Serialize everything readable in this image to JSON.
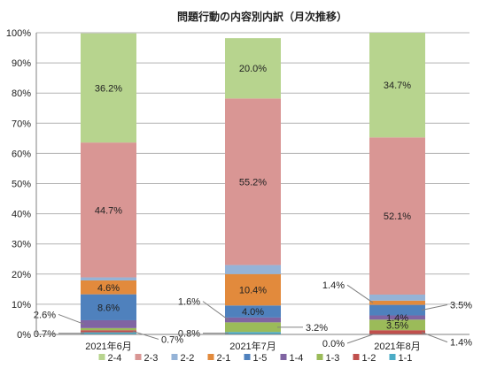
{
  "chart_data": {
    "type": "bar",
    "stacked": "percent",
    "title": "問題行動の内容別内訳（月次推移）",
    "categories": [
      "2021年6月",
      "2021年7月",
      "2021年8月"
    ],
    "yticks": [
      "0%",
      "10%",
      "20%",
      "30%",
      "40%",
      "50%",
      "60%",
      "70%",
      "80%",
      "90%",
      "100%"
    ],
    "ylim": [
      0,
      100
    ],
    "grid": true,
    "legend_position": "bottom",
    "series": [
      {
        "name": "1-1",
        "color": "#4bacc6",
        "values": [
          0.7,
          0.8,
          0.0
        ],
        "labels": [
          "0.7%",
          "0.8%",
          "0.0%"
        ]
      },
      {
        "name": "1-2",
        "color": "#c0504d",
        "values": [
          0.7,
          0.0,
          1.4
        ],
        "labels": [
          "0.7%",
          "",
          "1.4%"
        ]
      },
      {
        "name": "1-3",
        "color": "#9bbb59",
        "values": [
          0.7,
          3.2,
          3.5
        ],
        "labels": [
          "",
          "3.2%",
          "3.5%"
        ]
      },
      {
        "name": "1-4",
        "color": "#8064a2",
        "values": [
          2.6,
          1.6,
          1.4
        ],
        "labels": [
          "2.6%",
          "1.6%",
          "1.4%"
        ]
      },
      {
        "name": "1-5",
        "color": "#4f81bd",
        "values": [
          8.6,
          4.0,
          3.5
        ],
        "labels": [
          "8.6%",
          "4.0%",
          "3.5%"
        ]
      },
      {
        "name": "2-1",
        "color": "#e28a3c",
        "values": [
          4.6,
          10.4,
          1.4
        ],
        "labels": [
          "4.6%",
          "10.4%",
          "1.4%"
        ]
      },
      {
        "name": "2-2",
        "color": "#95b3d7",
        "values": [
          1.0,
          3.0,
          2.0
        ],
        "labels": [
          "",
          "",
          ""
        ]
      },
      {
        "name": "2-3",
        "color": "#d99694",
        "values": [
          44.7,
          55.2,
          52.1
        ],
        "labels": [
          "44.7%",
          "55.2%",
          "52.1%"
        ]
      },
      {
        "name": "2-4",
        "color": "#b7d48e",
        "values": [
          36.2,
          20.0,
          34.7
        ],
        "labels": [
          "36.2%",
          "20.0%",
          "34.7%"
        ]
      }
    ],
    "legend_order": [
      "2-4",
      "2-3",
      "2-2",
      "2-1",
      "1-5",
      "1-4",
      "1-3",
      "1-2",
      "1-1"
    ]
  }
}
